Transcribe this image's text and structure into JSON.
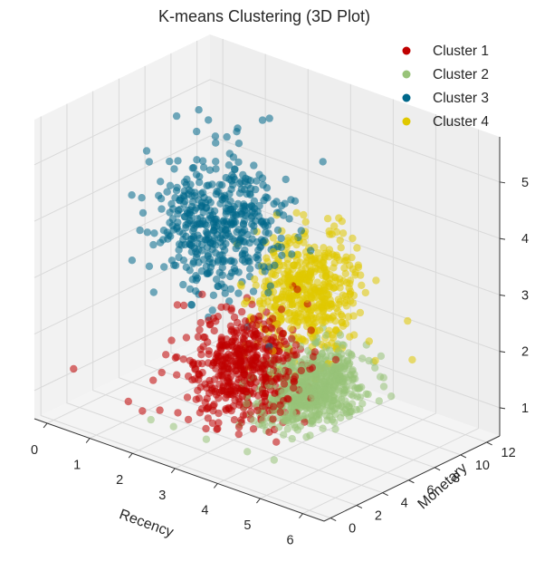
{
  "chart_data": {
    "type": "scatter",
    "title": "K-means Clustering (3D Plot)",
    "xlabel": "Recency",
    "ylabel": "Monetary",
    "zlabel": "",
    "xticks": [
      "0",
      "1",
      "2",
      "3",
      "4",
      "5",
      "6"
    ],
    "yticks": [
      "0",
      "2",
      "4",
      "6",
      "8",
      "10",
      "12"
    ],
    "zticks": [
      "1",
      "2",
      "3",
      "4",
      "5"
    ],
    "xlim": [
      -0.3,
      6.5
    ],
    "ylim": [
      -0.5,
      13
    ],
    "zlim": [
      0.5,
      5.8
    ],
    "grid": true,
    "legend_position": "top-right",
    "projection": "3d",
    "series": [
      {
        "name": "Cluster 1",
        "color": "#c00000",
        "center": [
          2.7,
          5.8,
          1.5
        ],
        "spread": [
          0.5,
          1.4,
          0.45
        ],
        "count": 520,
        "values": [
          [
            0.1,
            1.2,
            1.3
          ],
          [
            1.9,
            0.6,
            1.1
          ],
          [
            1.6,
            0.5,
            1.2
          ]
        ]
      },
      {
        "name": "Cluster 2",
        "color": "#98c379",
        "center": [
          3.4,
          8.6,
          1.0
        ],
        "spread": [
          0.35,
          1.6,
          0.3
        ],
        "count": 650,
        "values": [
          [
            2.1,
            0.6,
            1.0
          ],
          [
            2.6,
            0.7,
            1.0
          ],
          [
            3.4,
            0.6,
            1.0
          ],
          [
            4.3,
            0.8,
            1.0
          ],
          [
            4.9,
            0.9,
            1.0
          ]
        ]
      },
      {
        "name": "Cluster 3",
        "color": "#00688b",
        "center": [
          1.7,
          7.2,
          3.6
        ],
        "spread": [
          0.55,
          1.8,
          0.55
        ],
        "count": 460,
        "values": [
          [
            0.9,
            6.5,
            5.4
          ],
          [
            2.9,
            11.2,
            4.6
          ],
          [
            1.2,
            8.5,
            4.9
          ]
        ]
      },
      {
        "name": "Cluster 4",
        "color": "#e0c800",
        "center": [
          2.7,
          10.6,
          2.3
        ],
        "spread": [
          0.45,
          1.4,
          0.5
        ],
        "count": 520,
        "values": [
          [
            4.4,
            12.8,
            2.0
          ],
          [
            4.6,
            12.5,
            1.4
          ]
        ]
      }
    ]
  }
}
